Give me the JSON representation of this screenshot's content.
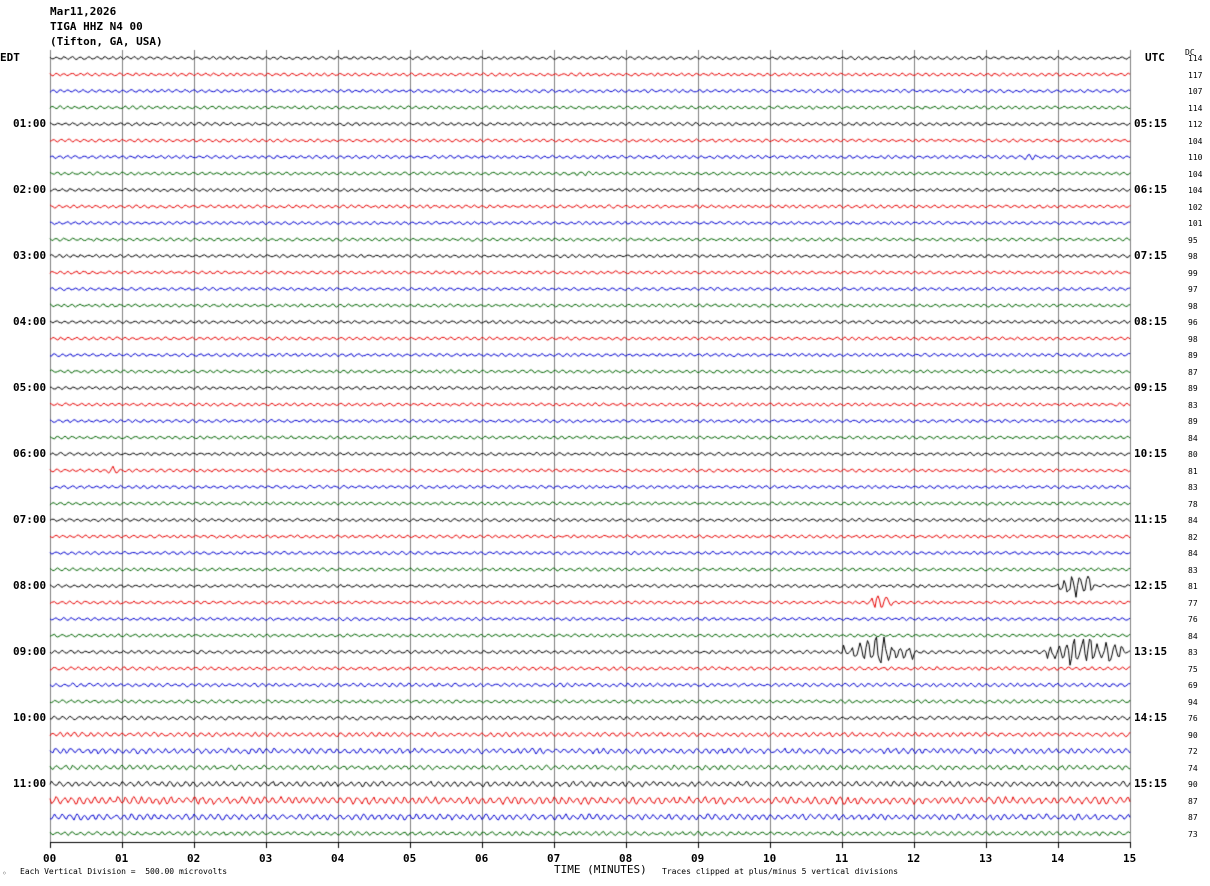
{
  "header": {
    "date": "Mar11,2026",
    "station": "TIGA HHZ N4 00",
    "location": "(Tifton, GA, USA)"
  },
  "left_axis_label": "EDT",
  "right_axis_label": "UTC",
  "dc_label": "DC",
  "footer": {
    "corner_mark": "◦",
    "scale_text": "Each Vertical Division =  500.00 microvolts",
    "xlabel": "TIME (MINUTES)",
    "clip_text": "Traces clipped at plus/minus 5 vertical divisions"
  },
  "chart_data": {
    "type": "line",
    "xlim": [
      0,
      15
    ],
    "x_ticks": [
      "00",
      "01",
      "02",
      "03",
      "04",
      "05",
      "06",
      "07",
      "08",
      "09",
      "10",
      "11",
      "12",
      "13",
      "14",
      "15"
    ],
    "trace_count": 48,
    "trace_colors": [
      "#000000",
      "#e80000",
      "#0000d0",
      "#006400"
    ],
    "grid": "vertical lines every minute",
    "left_time_labels": [
      {
        "row": 4,
        "label": "01:00"
      },
      {
        "row": 8,
        "label": "02:00"
      },
      {
        "row": 12,
        "label": "03:00"
      },
      {
        "row": 16,
        "label": "04:00"
      },
      {
        "row": 20,
        "label": "05:00"
      },
      {
        "row": 24,
        "label": "06:00"
      },
      {
        "row": 28,
        "label": "07:00"
      },
      {
        "row": 32,
        "label": "08:00"
      },
      {
        "row": 36,
        "label": "09:00"
      },
      {
        "row": 40,
        "label": "10:00"
      },
      {
        "row": 44,
        "label": "11:00"
      }
    ],
    "right_time_labels": [
      {
        "row": 4,
        "label": "05:15"
      },
      {
        "row": 8,
        "label": "06:15"
      },
      {
        "row": 12,
        "label": "07:15"
      },
      {
        "row": 16,
        "label": "08:15"
      },
      {
        "row": 20,
        "label": "09:15"
      },
      {
        "row": 24,
        "label": "10:15"
      },
      {
        "row": 28,
        "label": "11:15"
      },
      {
        "row": 32,
        "label": "12:15"
      },
      {
        "row": 36,
        "label": "13:15"
      },
      {
        "row": 40,
        "label": "14:15"
      },
      {
        "row": 44,
        "label": "15:15"
      }
    ],
    "dc_offsets": [
      "114",
      "117",
      "107",
      "114",
      "112",
      "104",
      "110",
      "104",
      "104",
      "102",
      "101",
      "95",
      "98",
      "99",
      "97",
      "98",
      "96",
      "98",
      "89",
      "87",
      "89",
      "83",
      "89",
      "84",
      "80",
      "81",
      "83",
      "78",
      "84",
      "82",
      "84",
      "83",
      "81",
      "77",
      "76",
      "84",
      "83",
      "75",
      "69",
      "94",
      "76",
      "90",
      "72",
      "74",
      "90",
      "87",
      "87",
      "73"
    ],
    "noise_level": [
      1,
      1,
      1,
      1,
      1,
      1,
      1,
      1,
      1,
      1,
      1,
      1,
      1,
      1,
      1,
      1,
      1,
      1,
      1,
      1,
      1,
      1,
      1,
      1,
      1,
      1,
      1,
      1,
      1,
      1,
      1,
      1,
      1,
      1,
      1,
      1,
      1.1,
      1.1,
      1.2,
      1.1,
      1.2,
      1.4,
      1.8,
      1.5,
      1.7,
      2.4,
      1.9,
      1.3
    ],
    "events": [
      {
        "row": 7,
        "minute_start": 7.2,
        "minute_end": 7.6,
        "amplitude": 2
      },
      {
        "row": 6,
        "minute_start": 13.3,
        "minute_end": 14.0,
        "amplitude": 2
      },
      {
        "row": 15,
        "minute_start": 2.4,
        "minute_end": 2.8,
        "amplitude": 2
      },
      {
        "row": 25,
        "minute_start": 0.75,
        "minute_end": 1.0,
        "amplitude": 3
      },
      {
        "row": 36,
        "minute_start": 11.0,
        "minute_end": 12.0,
        "amplitude": 12
      },
      {
        "row": 33,
        "minute_start": 11.4,
        "minute_end": 11.7,
        "amplitude": 9
      },
      {
        "row": 36,
        "minute_start": 13.8,
        "minute_end": 14.9,
        "amplitude": 14
      },
      {
        "row": 32,
        "minute_start": 14.0,
        "minute_end": 14.5,
        "amplitude": 12
      },
      {
        "row": 45,
        "minute_start": 7.1,
        "minute_end": 7.5,
        "amplitude": 3
      },
      {
        "row": 45,
        "minute_start": 14.7,
        "minute_end": 15.0,
        "amplitude": 3
      },
      {
        "row": 46,
        "minute_start": 0.9,
        "minute_end": 1.3,
        "amplitude": 4
      },
      {
        "row": 44,
        "minute_start": 12.0,
        "minute_end": 12.4,
        "amplitude": 2
      }
    ]
  }
}
